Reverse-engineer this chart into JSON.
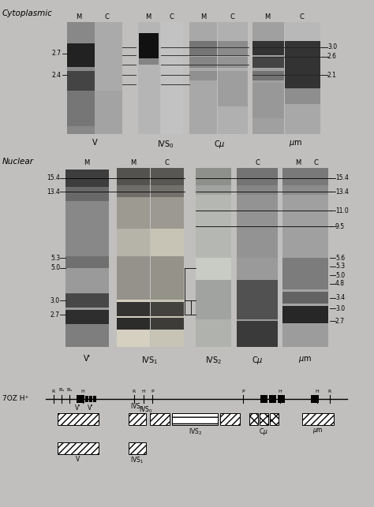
{
  "bg_color": "#c0bfbd",
  "title_cyto": "Cytoplasmic",
  "title_nuclear": "Nuclear",
  "fig_width": 4.74,
  "fig_height": 6.43,
  "cyto_labels_left": [
    "2.7",
    "2.4"
  ],
  "cyto_labels_right": [
    "3.0",
    "2.6",
    "2.1"
  ],
  "nuclear_labels_left": [
    "15.4",
    "13.4",
    "5.3",
    "5.0",
    "3.0",
    "2.7"
  ],
  "nuclear_labels_right": [
    "15.4",
    "13.4",
    "11.0",
    "9.5",
    "5.6",
    "5.3",
    "5.0",
    "4.8",
    "3.4",
    "3.0",
    "2.7"
  ],
  "cyto_probes": [
    "V",
    "IVS₀",
    "Cμ",
    "μm"
  ],
  "nuclear_probes": [
    "V'",
    "IVS₁",
    "IVS₂",
    "Cμ",
    "μm"
  ],
  "map_label": "7OZ H⁺"
}
